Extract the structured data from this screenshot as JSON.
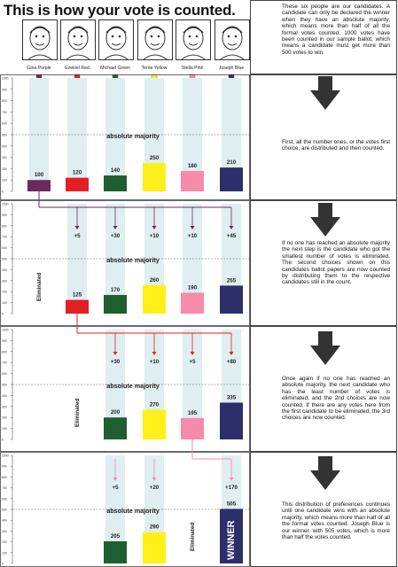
{
  "header": {
    "title": "This is how your vote is counted.",
    "intro": "These six people are our candidates. A candidate can only be declared the winner when they have an absolute majority, which means more than half of all the formal votes counted. 1000 votes have been counted in our sample ballot, which means a candidate must get more than 500 votes to win."
  },
  "candidates": [
    {
      "name": "Gina Purple",
      "color": "#6b2a5e"
    },
    {
      "name": "Ezekiel Red",
      "color": "#e31e24"
    },
    {
      "name": "Michael Green",
      "color": "#1f5e2e"
    },
    {
      "name": "Terrie Yellow",
      "color": "#ffef1a"
    },
    {
      "name": "Stella Pink",
      "color": "#f58bab"
    },
    {
      "name": "Joseph Blue",
      "color": "#2d2f6b"
    }
  ],
  "labels": {
    "majority": "absolute majority",
    "eliminated": "Eliminated",
    "winner": "WINNER"
  },
  "chart_data": [
    {
      "type": "bar",
      "categories": [
        "Gina Purple",
        "Ezekiel Red",
        "Michael Green",
        "Terrie Yellow",
        "Stella Pink",
        "Joseph Blue"
      ],
      "values": [
        100,
        120,
        140,
        250,
        180,
        210
      ],
      "transfers": [
        null,
        null,
        null,
        null,
        null,
        null
      ],
      "eliminated": [],
      "ylim": [
        0,
        1000
      ],
      "ticks": [
        0,
        100,
        200,
        300,
        400,
        500,
        600,
        700,
        800,
        900,
        1000
      ],
      "majority_line": 500,
      "description": "First, all the number ones, or the votes first choice, are distributed and then counted."
    },
    {
      "type": "bar",
      "categories": [
        "Gina Purple",
        "Ezekiel Red",
        "Michael Green",
        "Terrie Yellow",
        "Stella Pink",
        "Joseph Blue"
      ],
      "values": [
        null,
        125,
        170,
        260,
        190,
        255
      ],
      "transfers": [
        null,
        "+5",
        "+30",
        "+10",
        "+10",
        "+45"
      ],
      "eliminated": [
        "Gina Purple"
      ],
      "ylim": [
        0,
        1000
      ],
      "ticks": [
        0,
        100,
        200,
        300,
        400,
        500,
        600,
        700,
        800,
        900,
        1000
      ],
      "majority_line": 500,
      "description": "If no one has reached an absolute majority the next step is the candidate who got the smallest number of votes is eliminated. The second choices shown on this candidates ballot papers are now counted by distributing them to the respective candidates still in the count."
    },
    {
      "type": "bar",
      "categories": [
        "Gina Purple",
        "Ezekiel Red",
        "Michael Green",
        "Terrie Yellow",
        "Stella Pink",
        "Joseph Blue"
      ],
      "values": [
        null,
        null,
        200,
        270,
        195,
        335
      ],
      "transfers": [
        null,
        null,
        "+30",
        "+10",
        "+5",
        "+80"
      ],
      "eliminated": [
        "Ezekiel Red"
      ],
      "ylim": [
        0,
        1000
      ],
      "ticks": [
        0,
        100,
        200,
        300,
        400,
        500,
        600,
        700,
        800,
        900,
        1000
      ],
      "majority_line": 500,
      "description": "Once again if no one has reached an absolute majority, the next candidate who has the least number of votes is eliminated, and the 2nd choices are now counted. If there are any votes here from the first candidate to be eliminated, the 3rd choices are now counted."
    },
    {
      "type": "bar",
      "categories": [
        "Gina Purple",
        "Ezekiel Red",
        "Michael Green",
        "Terrie Yellow",
        "Stella Pink",
        "Joseph Blue"
      ],
      "values": [
        null,
        null,
        205,
        290,
        null,
        505
      ],
      "transfers": [
        null,
        null,
        "+5",
        "+20",
        null,
        "+170"
      ],
      "eliminated": [
        "Stella Pink"
      ],
      "winner": "Joseph Blue",
      "ylim": [
        0,
        1000
      ],
      "ticks": [
        0,
        100,
        200,
        300,
        400,
        500,
        600,
        700,
        800,
        900,
        1000
      ],
      "majority_line": 500,
      "description": "This distribution of preferences continues until one candidate wins with an absolute majority, which means more than half of all the formal votes counted. Joseph Blue is our winner, with 505 votes, which is more than half the votes counted."
    }
  ]
}
